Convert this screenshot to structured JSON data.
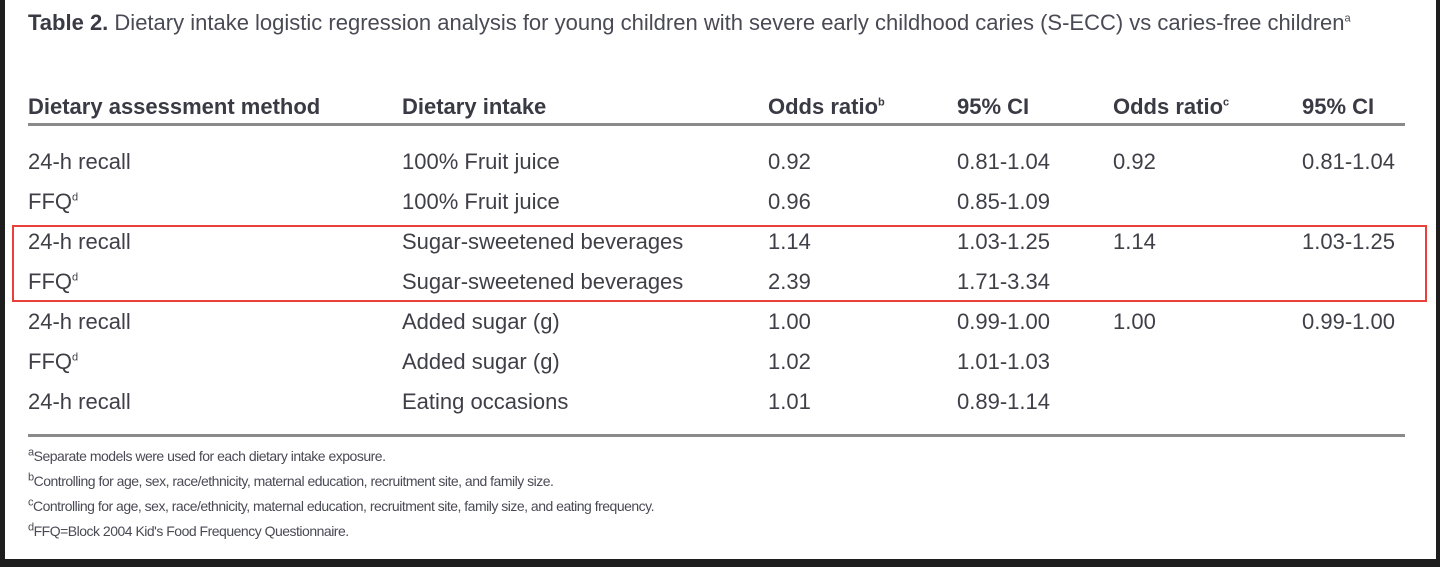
{
  "table": {
    "label": "Table 2.",
    "caption": "Dietary intake logistic regression analysis for young children with severe early childhood caries (S-ECC) vs caries-free children",
    "caption_sup": "a",
    "headers": [
      {
        "text": "Dietary assessment method",
        "sup": ""
      },
      {
        "text": "Dietary intake",
        "sup": ""
      },
      {
        "text": "Odds ratio",
        "sup": "b"
      },
      {
        "text": "95% CI",
        "sup": ""
      },
      {
        "text": "Odds ratio",
        "sup": "c"
      },
      {
        "text": "95% CI",
        "sup": ""
      }
    ],
    "rows": [
      {
        "method": "24-h recall",
        "sup": "",
        "intake": "100% Fruit juice",
        "or_b": "0.92",
        "ci_b": "0.81-1.04",
        "or_c": "0.92",
        "ci_c": "0.81-1.04"
      },
      {
        "method": "FFQ",
        "sup": "d",
        "intake": "100% Fruit juice",
        "or_b": "0.96",
        "ci_b": "0.85-1.09",
        "or_c": "",
        "ci_c": ""
      },
      {
        "method": "24-h recall",
        "sup": "",
        "intake": "Sugar-sweetened beverages",
        "or_b": "1.14",
        "ci_b": "1.03-1.25",
        "or_c": "1.14",
        "ci_c": "1.03-1.25"
      },
      {
        "method": "FFQ",
        "sup": "d",
        "intake": "Sugar-sweetened beverages",
        "or_b": "2.39",
        "ci_b": "1.71-3.34",
        "or_c": "",
        "ci_c": ""
      },
      {
        "method": "24-h recall",
        "sup": "",
        "intake": "Added sugar (g)",
        "or_b": "1.00",
        "ci_b": "0.99-1.00",
        "or_c": "1.00",
        "ci_c": "0.99-1.00"
      },
      {
        "method": "FFQ",
        "sup": "d",
        "intake": "Added sugar (g)",
        "or_b": "1.02",
        "ci_b": "1.01-1.03",
        "or_c": "",
        "ci_c": ""
      },
      {
        "method": "24-h recall",
        "sup": "",
        "intake": "Eating occasions",
        "or_b": "1.01",
        "ci_b": "0.89-1.14",
        "or_c": "",
        "ci_c": ""
      }
    ],
    "highlight_color": "#e8403a",
    "footnotes": [
      {
        "sup": "a",
        "text": "Separate models were used for each dietary intake exposure."
      },
      {
        "sup": "b",
        "text": "Controlling for age, sex, race/ethnicity, maternal education, recruitment site, and family size."
      },
      {
        "sup": "c",
        "text": "Controlling for age, sex, race/ethnicity, maternal education, recruitment site, family size, and eating frequency."
      },
      {
        "sup": "d",
        "text": "FFQ=Block 2004 Kid's Food Frequency Questionnaire."
      }
    ]
  }
}
